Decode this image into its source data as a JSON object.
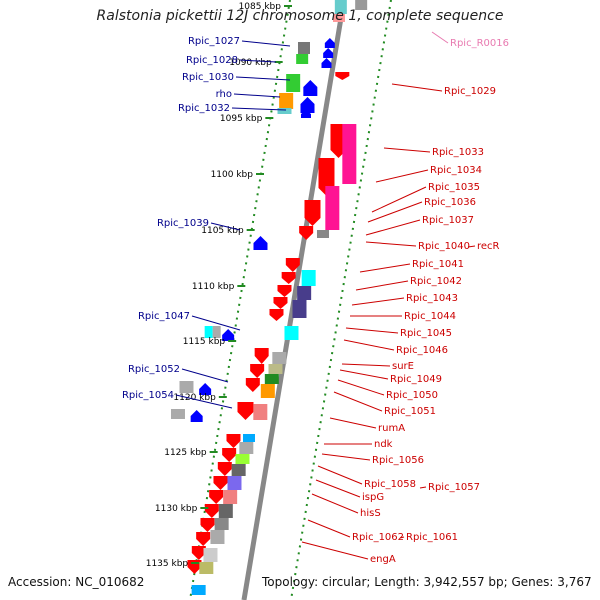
{
  "title": "Ralstonia pickettii 12J chromosome 1, complete sequence",
  "footer": {
    "accession": "Accession: NC_010682",
    "summary": "Topology: circular; Length: 3,942,557 bp; Genes: 3,767"
  },
  "colors": {
    "forward_label": "#00008b",
    "reverse_label": "#cc0000",
    "rna_label": "#e87ab0",
    "backbone": "#888888",
    "tick": "#228b22"
  },
  "ticks": [
    "1085 kbp",
    "1090 kbp",
    "1095 kbp",
    "1100 kbp",
    "1105 kbp",
    "1110 kbp",
    "1115 kbp",
    "1120 kbp",
    "1125 kbp",
    "1130 kbp",
    "1135 kbp"
  ],
  "labels_left": [
    "Rpic_1027",
    "Rpic_1028",
    "Rpic_1030",
    "rho",
    "Rpic_1032",
    "Rpic_1039",
    "Rpic_1047",
    "Rpic_1052",
    "Rpic_1054"
  ],
  "labels_right": [
    "Rpic_R0016",
    "Rpic_1029",
    "Rpic_1033",
    "Rpic_1034",
    "Rpic_1035",
    "Rpic_1036",
    "Rpic_1037",
    "Rpic_1040",
    "recR",
    "Rpic_1041",
    "Rpic_1042",
    "Rpic_1043",
    "Rpic_1044",
    "Rpic_1045",
    "Rpic_1046",
    "surE",
    "Rpic_1049",
    "Rpic_1050",
    "Rpic_1051",
    "rumA",
    "ndk",
    "Rpic_1056",
    "Rpic_1058",
    "Rpic_1057",
    "ispG",
    "hisS",
    "Rpic_1062",
    "Rpic_1061",
    "engA"
  ]
}
